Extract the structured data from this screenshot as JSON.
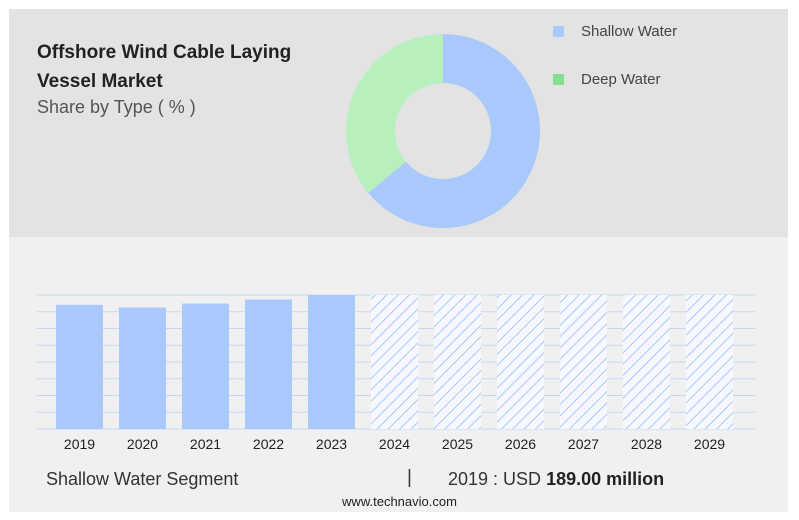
{
  "header": {
    "title": "Offshore Wind Cable Laying Vessel Market",
    "subtitle": "Share by Type ( % )"
  },
  "legend": {
    "items": [
      {
        "label": "Shallow Water",
        "color": "#a9c8fb"
      },
      {
        "label": "Deep Water",
        "color": "#82e08f"
      }
    ]
  },
  "chart_data": [
    {
      "type": "pie",
      "donut": true,
      "slices": [
        {
          "label": "Shallow Water",
          "value": 64,
          "color": "#a9c8fb"
        },
        {
          "label": "Deep Water",
          "value": 36,
          "color": "#b8f0bd"
        }
      ]
    },
    {
      "type": "bar",
      "categories": [
        "2019",
        "2020",
        "2021",
        "2022",
        "2023",
        "2024",
        "2025",
        "2026",
        "2027",
        "2028",
        "2029"
      ],
      "values": [
        189,
        185,
        191,
        197,
        204,
        null,
        null,
        null,
        null,
        null,
        null
      ],
      "forecast_categories": [
        "2024",
        "2025",
        "2026",
        "2027",
        "2028",
        "2029"
      ],
      "bar_color": "#a9c8fb",
      "forecast_pattern": "diagonal-hatch",
      "ylim": [
        0,
        204
      ],
      "grid": true,
      "series_name": "Shallow Water"
    }
  ],
  "footer": {
    "segment_label": "Shallow Water Segment",
    "separator": "|",
    "year_value": "2019 : USD ",
    "value_bold": "189.00 million",
    "source": "www.technavio.com"
  }
}
